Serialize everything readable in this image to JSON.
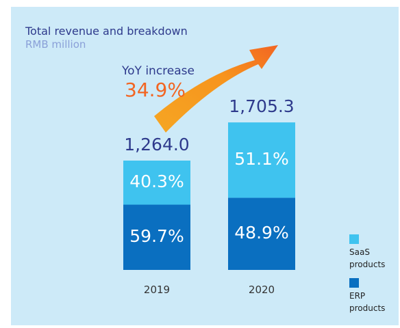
{
  "chart_data": {
    "type": "bar",
    "title": "Total revenue and breakdown",
    "subtitle": "RMB million",
    "annotation": "YoY increase",
    "annotation_value": "34.9%",
    "categories": [
      "2019",
      "2020"
    ],
    "totals": [
      1264.0,
      1705.3
    ],
    "total_labels": [
      "1,264.0",
      "1,705.3"
    ],
    "series": [
      {
        "name": "ERP products",
        "color": "#0a6fc0",
        "values": [
          59.7,
          48.9
        ],
        "value_labels": [
          "59.7%",
          "48.9%"
        ]
      },
      {
        "name": "SaaS products",
        "color": "#3fc3ef",
        "values": [
          40.3,
          51.1
        ],
        "value_labels": [
          "40.3%",
          "51.1%"
        ]
      }
    ]
  }
}
